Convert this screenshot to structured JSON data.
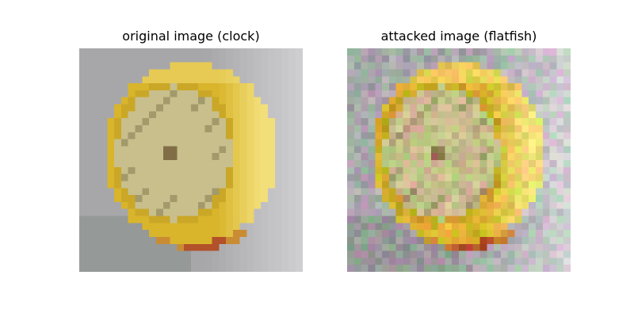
{
  "panels": [
    {
      "title": "original image (clock)",
      "label": "clock",
      "noise": 0
    },
    {
      "title": "attacked image (flatfish)",
      "label": "flatfish",
      "noise": 0.18
    }
  ],
  "palette": {
    "background": "#a7a7aa",
    "rim": "#d9b52c",
    "rim_highlight": "#f3df7a",
    "rim_shadow": "#a8861a",
    "face": "#c8bf8d",
    "face_dark": "#a39a6c",
    "base": "#c98c33",
    "base_red": "#b2512a",
    "shadow": "#7f8880"
  }
}
